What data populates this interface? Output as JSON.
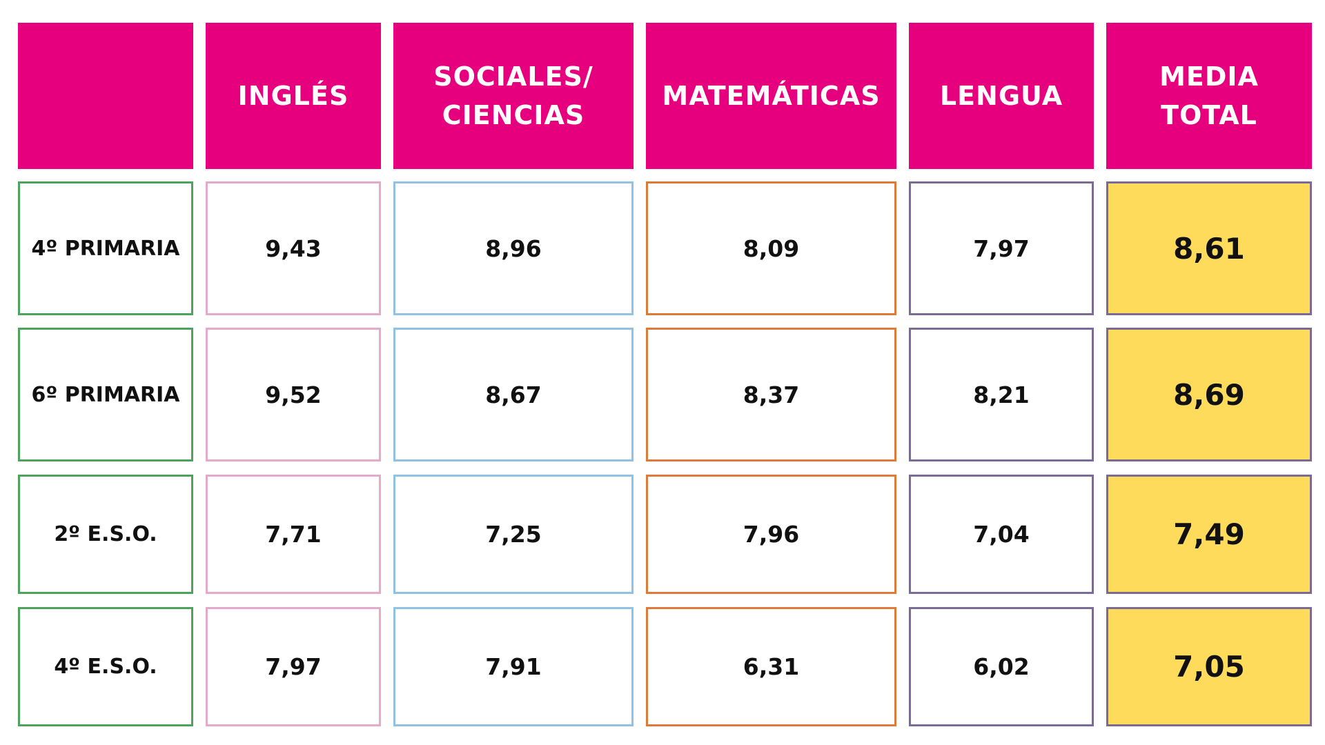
{
  "colors": {
    "header_bg": "#E6007E",
    "header_text": "#FFFFFF",
    "row_label_border": "#4CA35C",
    "ingles_border": "#E4A9CB",
    "sociales_border": "#8EC3E6",
    "matematicas_border": "#DD7A3A",
    "lengua_border": "#7A6A96",
    "media_bg": "#FFDB5B"
  },
  "headers": {
    "blank": "",
    "ingles": "INGLÉS",
    "sociales": "SOCIALES/\nCIENCIAS",
    "matematicas": "MATEMÁTICAS",
    "lengua": "LENGUA",
    "media": "MEDIA\nTOTAL"
  },
  "rows": [
    {
      "label": "4º PRIMARIA",
      "ingles": "9,43",
      "sociales": "8,96",
      "matematicas": "8,09",
      "lengua": "7,97",
      "media": "8,61"
    },
    {
      "label": "6º PRIMARIA",
      "ingles": "9,52",
      "sociales": "8,67",
      "matematicas": "8,37",
      "lengua": "8,21",
      "media": "8,69"
    },
    {
      "label": "2º E.S.O.",
      "ingles": "7,71",
      "sociales": "7,25",
      "matematicas": "7,96",
      "lengua": "7,04",
      "media": "7,49"
    },
    {
      "label": "4º E.S.O.",
      "ingles": "7,97",
      "sociales": "7,91",
      "matematicas": "6,31",
      "lengua": "6,02",
      "media": "7,05"
    }
  ]
}
